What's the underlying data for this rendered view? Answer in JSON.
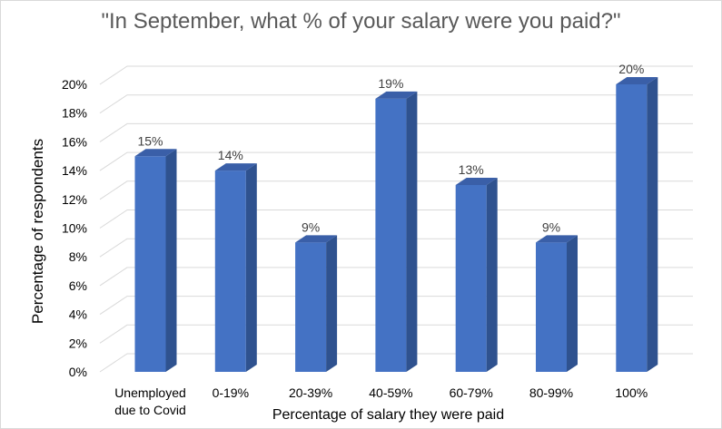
{
  "chart_data": {
    "type": "bar",
    "title": "\"In September, what % of your salary were you paid?\"",
    "xlabel": "Percentage of salary they were paid",
    "ylabel": "Percentage of respondents",
    "categories": [
      [
        "Unemployed",
        "due to Covid"
      ],
      [
        "0-19%"
      ],
      [
        "20-39%"
      ],
      [
        "40-59%"
      ],
      [
        "60-79%"
      ],
      [
        "80-99%"
      ],
      [
        "100%"
      ]
    ],
    "values": [
      15,
      14,
      9,
      19,
      13,
      9,
      20
    ],
    "data_labels": [
      "15%",
      "14%",
      "9%",
      "19%",
      "13%",
      "9%",
      "20%"
    ],
    "ylim": [
      0,
      20
    ],
    "yticks": [
      0,
      2,
      4,
      6,
      8,
      10,
      12,
      14,
      16,
      18,
      20
    ],
    "ytick_labels": [
      "0%",
      "2%",
      "4%",
      "6%",
      "8%",
      "10%",
      "12%",
      "14%",
      "16%",
      "18%",
      "20%"
    ],
    "grid": true,
    "style": "3d-column",
    "colors": {
      "bar_front": "#4472c4",
      "bar_side": "#2f528f",
      "bar_top": "#3a5fa8",
      "grid": "#d9d9d9"
    }
  }
}
